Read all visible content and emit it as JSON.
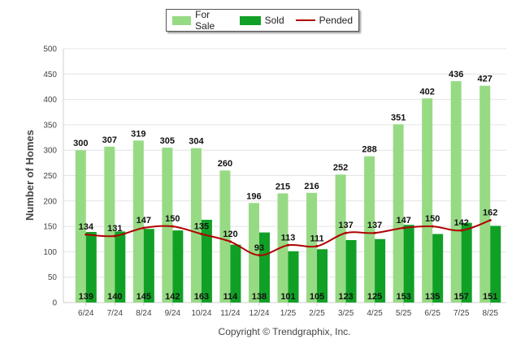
{
  "legend": {
    "for_sale": "For Sale",
    "sold": "Sold",
    "pended": "Pended"
  },
  "copyright": "Copyright © Trendgraphix, Inc.",
  "colors": {
    "for_sale": "#97da84",
    "sold": "#11a026",
    "pended": "#b00000",
    "grid": "#e4e4e4"
  },
  "chart_data": {
    "type": "bar",
    "title": "",
    "xlabel": "",
    "ylabel": "Number of Homes",
    "ylim": [
      0,
      500
    ],
    "yticks": [
      0,
      50,
      100,
      150,
      200,
      250,
      300,
      350,
      400,
      450,
      500
    ],
    "grid": true,
    "legend_position": "top-center",
    "categories": [
      "6/24",
      "7/24",
      "8/24",
      "9/24",
      "10/24",
      "11/24",
      "12/24",
      "1/25",
      "2/25",
      "3/25",
      "4/25",
      "5/25",
      "6/25",
      "7/25",
      "8/25"
    ],
    "series": [
      {
        "name": "For Sale",
        "kind": "bar",
        "values": [
          300,
          307,
          319,
          305,
          304,
          260,
          196,
          215,
          216,
          252,
          288,
          351,
          402,
          436,
          427
        ]
      },
      {
        "name": "Sold",
        "kind": "bar",
        "values": [
          139,
          140,
          145,
          142,
          163,
          114,
          138,
          101,
          105,
          123,
          125,
          153,
          135,
          157,
          151
        ]
      },
      {
        "name": "Pended",
        "kind": "line",
        "values": [
          134,
          131,
          147,
          150,
          135,
          120,
          93,
          113,
          111,
          137,
          137,
          147,
          150,
          142,
          162
        ]
      }
    ]
  }
}
